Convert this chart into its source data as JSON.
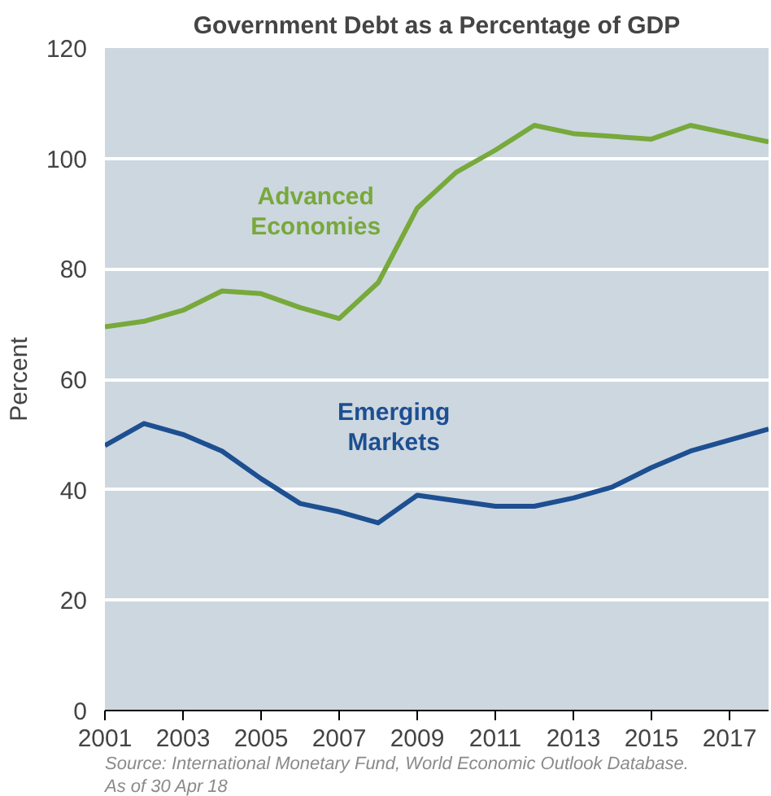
{
  "chart_data": {
    "type": "line",
    "title": "Government Debt as a Percentage of GDP",
    "ylabel": "Percent",
    "x": [
      2001,
      2002,
      2003,
      2004,
      2005,
      2006,
      2007,
      2008,
      2009,
      2010,
      2011,
      2012,
      2013,
      2014,
      2015,
      2016,
      2017,
      2018
    ],
    "series": [
      {
        "name": "Advanced Economies",
        "color": "#77a93b",
        "values": [
          69.5,
          70.5,
          72.5,
          76,
          75.5,
          73,
          71,
          77.5,
          91,
          97.5,
          101.5,
          106,
          104.5,
          104,
          103.5,
          106,
          104.5,
          103
        ]
      },
      {
        "name": "Emerging Markets",
        "color": "#1d4f91",
        "values": [
          48,
          52,
          50,
          47,
          42,
          37.5,
          36,
          34,
          39,
          38,
          37,
          37,
          38.5,
          40.5,
          44,
          47,
          49,
          51
        ]
      }
    ],
    "xlim": [
      2001,
      2018
    ],
    "xticks": [
      2001,
      2003,
      2005,
      2007,
      2009,
      2011,
      2013,
      2015,
      2017
    ],
    "ylim": [
      0,
      120
    ],
    "yticks": [
      0,
      20,
      40,
      60,
      80,
      100,
      120
    ],
    "grid": "y",
    "legend": false,
    "marker": "none",
    "line_style": "solid",
    "annotations": [
      "Source: International Monetary Fund, World Economic Outlook Database.",
      "As of 30 Apr 18"
    ]
  }
}
